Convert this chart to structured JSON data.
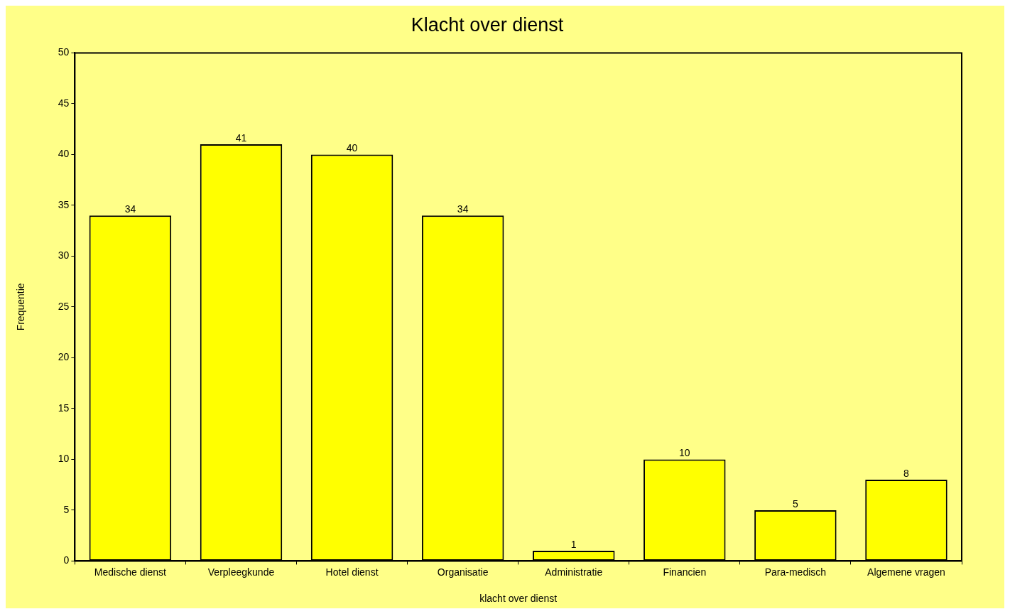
{
  "chart_data": {
    "type": "bar",
    "title": "Klacht over dienst",
    "xlabel": "klacht over dienst",
    "ylabel": "Frequentie",
    "categories": [
      "Medische dienst",
      "Verpleegkunde",
      "Hotel dienst",
      "Organisatie",
      "Administratie",
      "Financien",
      "Para-medisch",
      "Algemene vragen"
    ],
    "values": [
      34,
      41,
      40,
      34,
      1,
      10,
      5,
      8
    ],
    "color": "#ffff00",
    "ylim": [
      0,
      50
    ],
    "yticks": [
      0,
      5,
      10,
      15,
      20,
      25,
      30,
      35,
      40,
      45,
      50
    ],
    "grid": false,
    "legend": false,
    "data_labels": true
  }
}
